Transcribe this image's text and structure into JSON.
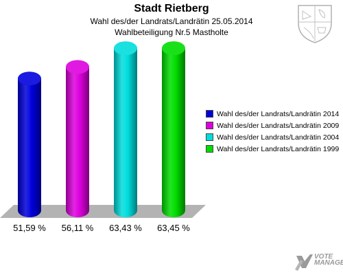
{
  "header": {
    "title": "Stadt Rietberg",
    "subtitle": "Wahl des/der Landrats/Landrätin 25.05.2014",
    "subtitle2": "Wahlbeteiligung Nr.5 Mastholte"
  },
  "watermark": {
    "line1": "VOTE",
    "line2": "MANAGER"
  },
  "icons": {
    "crest": "coat-of-arms-icon",
    "logo": "vote-manager-logo-icon"
  },
  "chart_data": {
    "type": "bar",
    "title": "Stadt Rietberg",
    "subtitle": "Wahl des/der Landrats/Landrätin 25.05.2014 — Wahlbeteiligung Nr.5 Mastholte",
    "categories": [
      "Wahl des/der Landrats/Landrätin 2014",
      "Wahl des/der Landrats/Landrätin 2009",
      "Wahl des/der Landrats/Landrätin 2004",
      "Wahl des/der Landrats/Landrätin 1999"
    ],
    "values": [
      51.59,
      56.11,
      63.43,
      63.45
    ],
    "value_labels": [
      "51,59 %",
      "56,11 %",
      "63,43 %",
      "63,45 %"
    ],
    "colors": [
      "#0000dd",
      "#dd00dd",
      "#00dddd",
      "#00dd00"
    ],
    "xlabel": "",
    "ylabel": "",
    "ylim": [
      0,
      70
    ],
    "grid": false,
    "legend_position": "right"
  }
}
